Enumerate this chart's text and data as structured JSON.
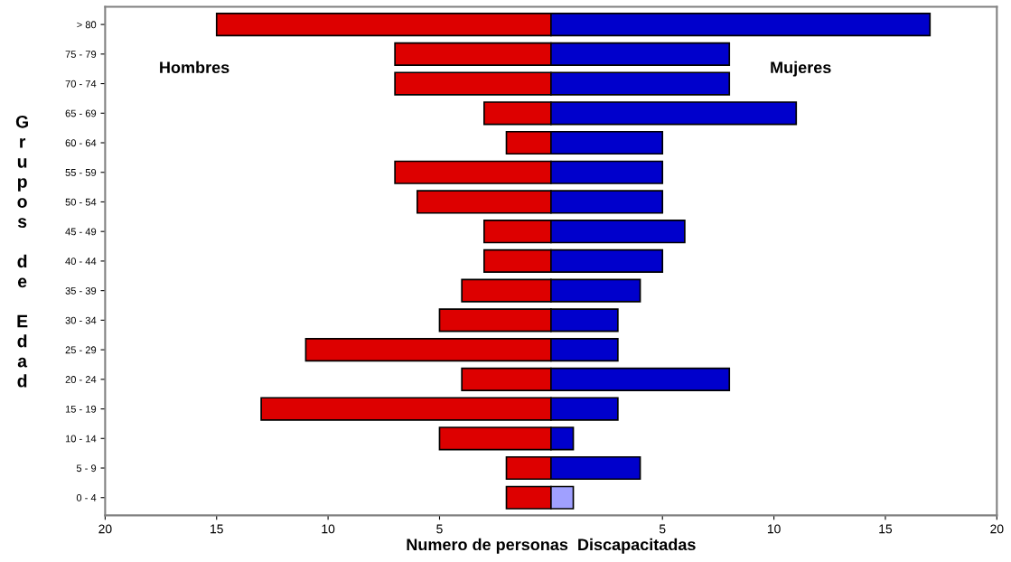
{
  "chart_data": {
    "type": "bar",
    "orientation": "horizontal",
    "stacked": true,
    "xlabel": "Numero de personas  Discapacitadas",
    "ylabel": "Grupos de Edad",
    "categories": [
      "> 80",
      "75 - 79",
      "70 - 74",
      "65 - 69",
      "60 - 64",
      "55 - 59",
      "50 - 54",
      "45 - 49",
      "40 - 44",
      "35 - 39",
      "30 - 34",
      "25 - 29",
      "20 - 24",
      "15 - 19",
      "10 - 14",
      "5 - 9",
      "0 - 4"
    ],
    "series": [
      {
        "name": "Hombres",
        "color": "#dd0000",
        "values": [
          -15,
          -7,
          -7,
          -3,
          -2,
          -7,
          -6,
          -3,
          -3,
          -4,
          -5,
          -11,
          -4,
          -13,
          -5,
          -2,
          -2
        ]
      },
      {
        "name": "Mujeres",
        "color": "#0000cc",
        "colors": [
          "#0000cc",
          "#0000cc",
          "#0000cc",
          "#0000cc",
          "#0000cc",
          "#0000cc",
          "#0000cc",
          "#0000cc",
          "#0000cc",
          "#0000cc",
          "#0000cc",
          "#0000cc",
          "#0000cc",
          "#0000cc",
          "#0000cc",
          "#0000cc",
          "#a0a0ff"
        ],
        "values": [
          17,
          8,
          8,
          11,
          5,
          5,
          5,
          6,
          5,
          4,
          3,
          3,
          8,
          3,
          1,
          4,
          1
        ]
      }
    ],
    "xlim": [
      -20,
      20
    ],
    "xticks": [
      {
        "value": -20,
        "label": "20"
      },
      {
        "value": -15,
        "label": "15"
      },
      {
        "value": -10,
        "label": "10"
      },
      {
        "value": -5,
        "label": "5"
      },
      5,
      10,
      15,
      20
    ],
    "grid": false,
    "legend": false
  }
}
